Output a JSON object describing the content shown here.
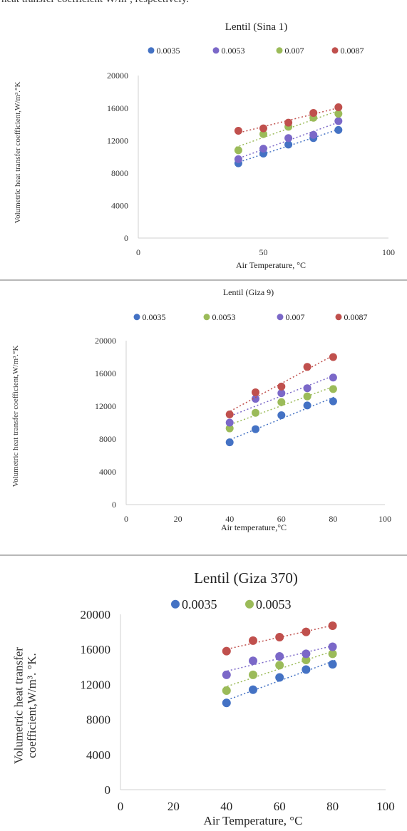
{
  "page": {
    "top_text": "heat transfer coefficient W/m³, respectively."
  },
  "chart_data": [
    {
      "type": "scatter",
      "title": "Lentil (Sina 1)",
      "xlabel": "Air Temperature, °C",
      "ylabel": "Volumetric heat transfer coefficient,W/m³.°K",
      "xlim": [
        0,
        100
      ],
      "ylim": [
        0,
        20000
      ],
      "xticks": [
        "0",
        "50",
        "100"
      ],
      "yticks": [
        "0",
        "4000",
        "8000",
        "12000",
        "16000",
        "20000"
      ],
      "legend_position": "top",
      "x": [
        40,
        50,
        60,
        70,
        80
      ],
      "series": [
        {
          "name": "0.0035",
          "color": "#4472C4",
          "values": [
            9200,
            10400,
            11500,
            12300,
            13300
          ]
        },
        {
          "name": "0.0053",
          "color": "#7B68C8",
          "values": [
            9700,
            11000,
            12300,
            12700,
            14400
          ]
        },
        {
          "name": "0.007",
          "color": "#9BBB59",
          "values": [
            10800,
            12800,
            13700,
            14800,
            15300
          ]
        },
        {
          "name": "0.0087",
          "color": "#C0504D",
          "values": [
            13200,
            13500,
            14200,
            15400,
            16100
          ]
        }
      ]
    },
    {
      "type": "scatter",
      "title": "Lentil (Giza 9)",
      "xlabel": "Air temperature,°C",
      "ylabel": "Volumetric heat transfer coefficient,W/m³.°K",
      "xlim": [
        0,
        100
      ],
      "ylim": [
        0,
        20000
      ],
      "xticks": [
        "0",
        "20",
        "40",
        "60",
        "80",
        "100"
      ],
      "yticks": [
        "0",
        "4000",
        "8000",
        "12000",
        "16000",
        "20000"
      ],
      "legend_position": "top",
      "x": [
        40,
        50,
        60,
        70,
        80
      ],
      "series": [
        {
          "name": "0.0035",
          "color": "#4472C4",
          "values": [
            7600,
            9200,
            10900,
            12100,
            12600
          ]
        },
        {
          "name": "0.0053",
          "color": "#9BBB59",
          "values": [
            9300,
            11200,
            12500,
            13200,
            14100
          ]
        },
        {
          "name": "0.007",
          "color": "#7B68C8",
          "values": [
            10000,
            12900,
            13600,
            14200,
            15500
          ]
        },
        {
          "name": "0.0087",
          "color": "#C0504D",
          "values": [
            11000,
            13700,
            14400,
            16800,
            18000
          ]
        }
      ]
    },
    {
      "type": "scatter",
      "title": "Lentil (Giza 370)",
      "xlabel": "Air Temperature, °C",
      "ylabel": "Volumetric heat transfer coefficient,W/m³. °K.",
      "xlim": [
        0,
        100
      ],
      "ylim": [
        0,
        20000
      ],
      "xticks": [
        "0",
        "20",
        "40",
        "60",
        "80",
        "100"
      ],
      "yticks": [
        "0",
        "4000",
        "8000",
        "12000",
        "16000",
        "20000"
      ],
      "legend_position": "top",
      "x": [
        40,
        50,
        60,
        70,
        80
      ],
      "series": [
        {
          "name": "0.0035",
          "color": "#4472C4",
          "values": [
            9900,
            11400,
            12800,
            13700,
            14300
          ]
        },
        {
          "name": "0.0053",
          "color": "#9BBB59",
          "values": [
            11300,
            13100,
            14200,
            14800,
            15500
          ]
        },
        {
          "name": "",
          "color": "#7B68C8",
          "values": [
            13100,
            14700,
            15200,
            15500,
            16300
          ]
        },
        {
          "name": "",
          "color": "#C0504D",
          "values": [
            15800,
            17000,
            17400,
            18000,
            18700
          ]
        }
      ]
    }
  ]
}
